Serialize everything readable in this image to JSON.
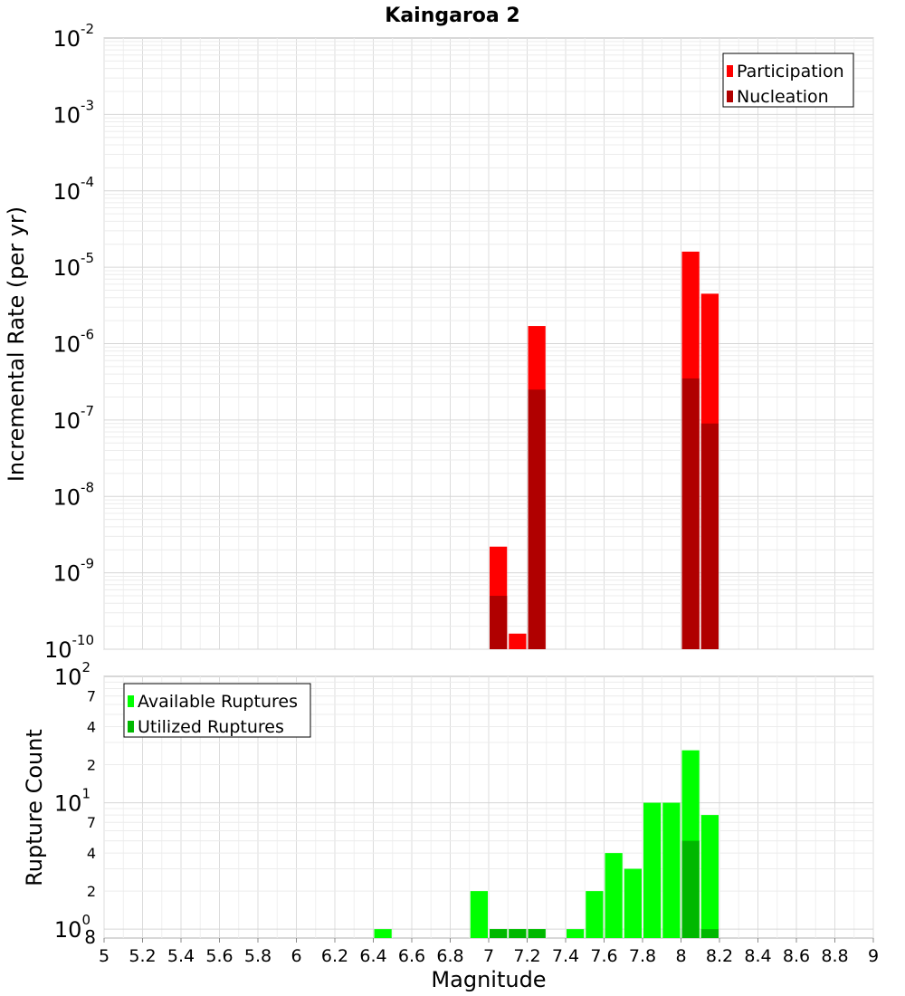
{
  "chart_data": [
    {
      "type": "bar",
      "panel": "top",
      "title": "Kaingaroa 2",
      "xlabel": "",
      "ylabel": "Incremental Rate (per yr)",
      "yscale": "log",
      "ylim": [
        1e-10,
        0.01
      ],
      "xlim": [
        5,
        9
      ],
      "grid": true,
      "legend_position": "top-right",
      "y_ticks": [
        {
          "value": 1e-10,
          "base": "10",
          "exp": "-10"
        },
        {
          "value": 1e-09,
          "base": "10",
          "exp": "-9"
        },
        {
          "value": 1e-08,
          "base": "10",
          "exp": "-8"
        },
        {
          "value": 1e-07,
          "base": "10",
          "exp": "-7"
        },
        {
          "value": 1e-06,
          "base": "10",
          "exp": "-6"
        },
        {
          "value": 1e-05,
          "base": "10",
          "exp": "-5"
        },
        {
          "value": 0.0001,
          "base": "10",
          "exp": "-4"
        },
        {
          "value": 0.001,
          "base": "10",
          "exp": "-3"
        },
        {
          "value": 0.01,
          "base": "10",
          "exp": "-2"
        }
      ],
      "series": [
        {
          "name": "Participation",
          "color": "#ff0000",
          "points": [
            {
              "x": 7.05,
              "y": 2.2e-09
            },
            {
              "x": 7.15,
              "y": 1.6e-10
            },
            {
              "x": 7.25,
              "y": 1.7e-06
            },
            {
              "x": 8.05,
              "y": 1.6e-05
            },
            {
              "x": 8.15,
              "y": 4.5e-06
            }
          ]
        },
        {
          "name": "Nucleation",
          "color": "#b00000",
          "points": [
            {
              "x": 7.05,
              "y": 5e-10
            },
            {
              "x": 7.25,
              "y": 2.5e-07
            },
            {
              "x": 8.05,
              "y": 3.5e-07
            },
            {
              "x": 8.15,
              "y": 9e-08
            }
          ]
        }
      ]
    },
    {
      "type": "bar",
      "panel": "bottom",
      "xlabel": "Magnitude",
      "ylabel": "Rupture Count",
      "yscale": "log",
      "ylim": [
        0.85,
        100
      ],
      "xlim": [
        5,
        9
      ],
      "grid": true,
      "legend_position": "top-left",
      "x_ticks": [
        "5",
        "5.2",
        "5.4",
        "5.6",
        "5.8",
        "6",
        "6.2",
        "6.4",
        "6.6",
        "6.8",
        "7",
        "7.2",
        "7.4",
        "7.6",
        "7.8",
        "8",
        "8.2",
        "8.4",
        "8.6",
        "8.8",
        "9"
      ],
      "y_major_ticks": [
        {
          "value": 1,
          "base": "10",
          "exp": "0"
        },
        {
          "value": 10,
          "base": "10",
          "exp": "1"
        },
        {
          "value": 100,
          "base": "10",
          "exp": "2"
        }
      ],
      "y_minor_ticks": [
        {
          "value": 0.85,
          "label": "8"
        },
        {
          "value": 2,
          "label": "2"
        },
        {
          "value": 4,
          "label": "4"
        },
        {
          "value": 7,
          "label": "7"
        },
        {
          "value": 20,
          "label": "2"
        },
        {
          "value": 40,
          "label": "4"
        },
        {
          "value": 70,
          "label": "7"
        }
      ],
      "series": [
        {
          "name": "Available Ruptures",
          "color": "#00ff00",
          "points": [
            {
              "x": 6.45,
              "y": 1
            },
            {
              "x": 6.95,
              "y": 2
            },
            {
              "x": 7.05,
              "y": 1
            },
            {
              "x": 7.15,
              "y": 1
            },
            {
              "x": 7.25,
              "y": 1
            },
            {
              "x": 7.45,
              "y": 1
            },
            {
              "x": 7.55,
              "y": 2
            },
            {
              "x": 7.65,
              "y": 4
            },
            {
              "x": 7.75,
              "y": 3
            },
            {
              "x": 7.85,
              "y": 10
            },
            {
              "x": 7.95,
              "y": 10
            },
            {
              "x": 8.05,
              "y": 26
            },
            {
              "x": 8.15,
              "y": 8
            }
          ]
        },
        {
          "name": "Utilized Ruptures",
          "color": "#00b800",
          "points": [
            {
              "x": 7.05,
              "y": 1
            },
            {
              "x": 7.15,
              "y": 1
            },
            {
              "x": 7.25,
              "y": 1
            },
            {
              "x": 8.05,
              "y": 5
            },
            {
              "x": 8.15,
              "y": 1
            }
          ]
        }
      ]
    }
  ]
}
